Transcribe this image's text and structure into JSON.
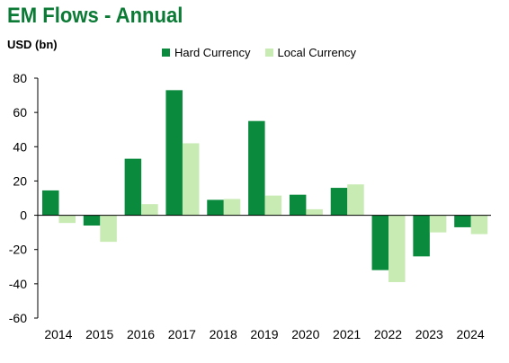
{
  "title": "EM Flows - Annual",
  "unit_label": "USD (bn)",
  "colors": {
    "hard": "#0a8a3c",
    "local": "#c8eab3"
  },
  "chart_data": {
    "type": "bar",
    "categories": [
      "2014",
      "2015",
      "2016",
      "2017",
      "2018",
      "2019",
      "2020",
      "2021",
      "2022",
      "2023",
      "2024"
    ],
    "series": [
      {
        "name": "Hard Currency",
        "values": [
          14.5,
          -6,
          33,
          73,
          9,
          55,
          12,
          16,
          -32,
          -24,
          -7
        ]
      },
      {
        "name": "Local Currency",
        "values": [
          -4.5,
          -15.5,
          6.5,
          42,
          9.5,
          11.5,
          3.5,
          18,
          -39,
          -10,
          -11
        ]
      }
    ],
    "ylim": [
      -60,
      80
    ],
    "yticks": [
      80,
      60,
      40,
      20,
      0,
      -20,
      -40,
      -60
    ],
    "legend": "top"
  }
}
